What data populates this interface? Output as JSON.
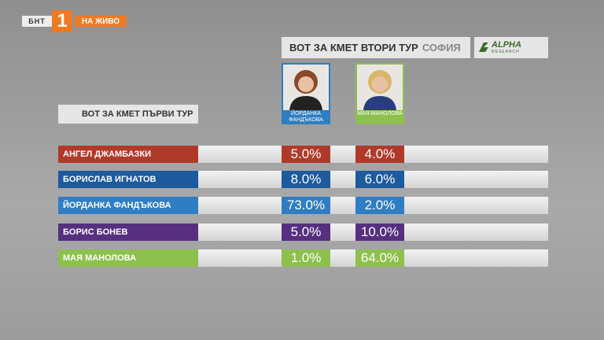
{
  "logo": {
    "channel": "БНТ",
    "number": "1",
    "live": "НА ЖИВО"
  },
  "header": {
    "title": "ВОТ ЗА КМЕТ ВТОРИ ТУР",
    "city": "СОФИЯ"
  },
  "brand": {
    "name": "ALPHA",
    "sub": "RESEARCH"
  },
  "columns": [
    {
      "name": "ЙОРДАНКА ФАНДЪКОВА",
      "color": "#2f7dc2"
    },
    {
      "name": "МАЯ МАНОЛОВА",
      "color": "#8dc04c"
    }
  ],
  "table": {
    "title": "ВОТ ЗА КМЕТ ПЪРВИ ТУР",
    "rows": [
      {
        "name": "АНГЕЛ ДЖАМБАЗКИ",
        "color": "#b03a2a",
        "values": [
          "5.0%",
          "4.0%"
        ]
      },
      {
        "name": "БОРИСЛАВ ИГНАТОВ",
        "color": "#1d5a9e",
        "values": [
          "8.0%",
          "6.0%"
        ]
      },
      {
        "name": "ЙОРДАНКА ФАНДЪКОВА",
        "color": "#2f7dc2",
        "values": [
          "73.0%",
          "2.0%"
        ]
      },
      {
        "name": "БОРИС БОНЕВ",
        "color": "#56307f",
        "values": [
          "5.0%",
          "10.0%"
        ]
      },
      {
        "name": "МАЯ МАНОЛОВА",
        "color": "#8dc04c",
        "values": [
          "1.0%",
          "64.0%"
        ]
      }
    ]
  }
}
